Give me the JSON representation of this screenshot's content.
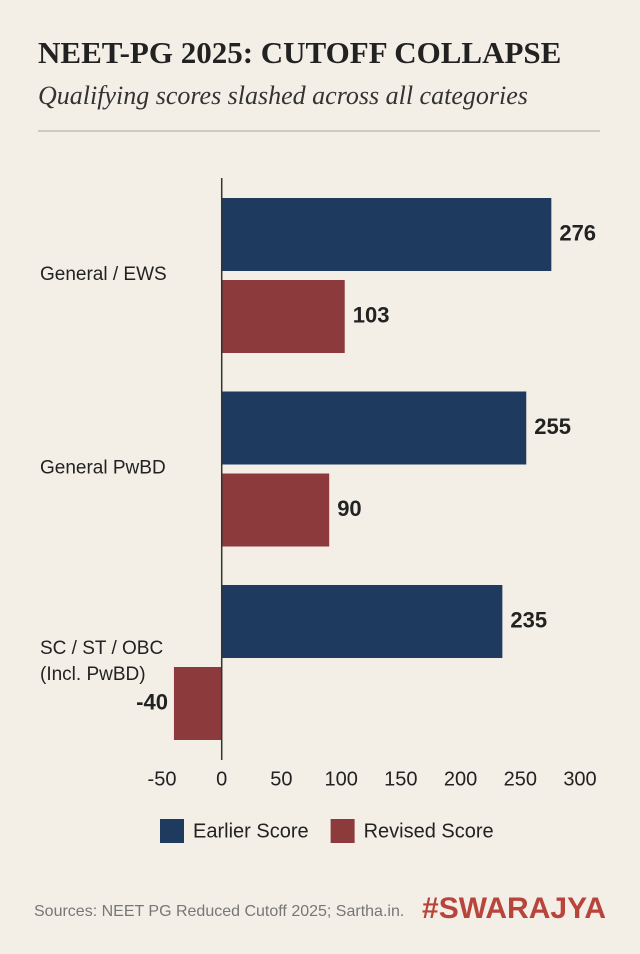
{
  "chart_data": {
    "type": "bar",
    "orientation": "horizontal",
    "title": "NEET-PG 2025: CUTOFF COLLAPSE",
    "subtitle": "Qualifying scores slashed across all categories",
    "categories": [
      "General / EWS",
      "General PwBD",
      "SC / ST / OBC\n(Incl. PwBD)"
    ],
    "series": [
      {
        "name": "Earlier Score",
        "color": "#1e3a5f",
        "values": [
          276,
          255,
          235
        ]
      },
      {
        "name": "Revised Score",
        "color": "#8c3a3c",
        "values": [
          103,
          90,
          -40
        ]
      }
    ],
    "xlim": [
      -50,
      300
    ],
    "xticks": [
      -50,
      0,
      50,
      100,
      150,
      200,
      250,
      300
    ],
    "legend": "bottom",
    "source": "Sources: NEET PG Reduced Cutoff 2025; Sartha.in.",
    "brand": "#SWARAJYA"
  }
}
